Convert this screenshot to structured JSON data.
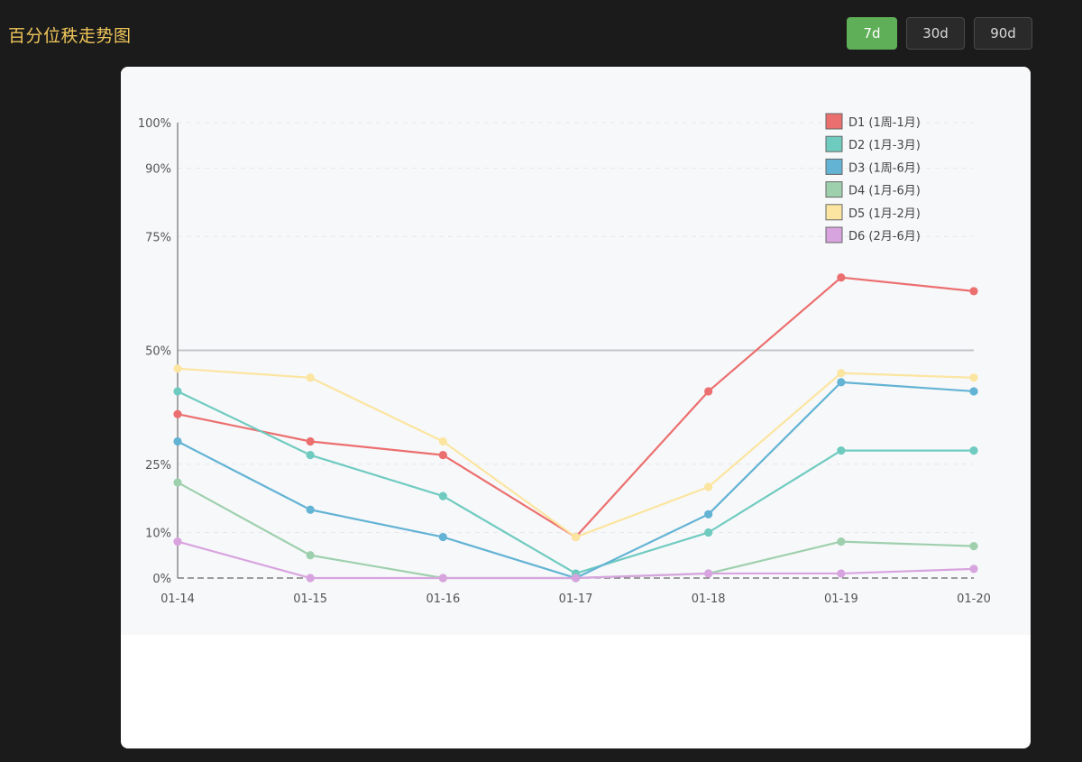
{
  "page": {
    "title": "百分位秩走势图"
  },
  "range_buttons": [
    {
      "label": "7d",
      "active": true
    },
    {
      "label": "30d",
      "active": false
    },
    {
      "label": "90d",
      "active": false
    }
  ],
  "chart_data": {
    "type": "line",
    "x": [
      "01-14",
      "01-15",
      "01-16",
      "01-17",
      "01-18",
      "01-19",
      "01-20"
    ],
    "y_ticks": [
      0,
      10,
      25,
      50,
      75,
      90,
      100
    ],
    "y_tick_labels": [
      "0%",
      "10%",
      "25%",
      "50%",
      "75%",
      "90%",
      "100%"
    ],
    "ylim": [
      0,
      100
    ],
    "reference_line": 50,
    "legend_position": "top-right",
    "grid": true,
    "series": [
      {
        "name": "D1 (1周-1月)",
        "color": "#ec6f6f",
        "values": [
          36,
          30,
          27,
          9,
          41,
          66,
          63
        ]
      },
      {
        "name": "D2 (1月-3月)",
        "color": "#6fcbc0",
        "values": [
          41,
          27,
          18,
          1,
          10,
          28,
          28
        ]
      },
      {
        "name": "D3 (1周-6月)",
        "color": "#63b3d4",
        "values": [
          30,
          15,
          9,
          0,
          14,
          43,
          41
        ]
      },
      {
        "name": "D4 (1月-6月)",
        "color": "#9fd0ae",
        "values": [
          21,
          5,
          0,
          0,
          1,
          8,
          7
        ]
      },
      {
        "name": "D5 (1月-2月)",
        "color": "#fbe5a0",
        "values": [
          46,
          44,
          30,
          9,
          20,
          45,
          44
        ]
      },
      {
        "name": "D6 (2月-6月)",
        "color": "#d8a4df",
        "values": [
          8,
          0,
          0,
          0,
          1,
          1,
          2
        ]
      }
    ]
  }
}
